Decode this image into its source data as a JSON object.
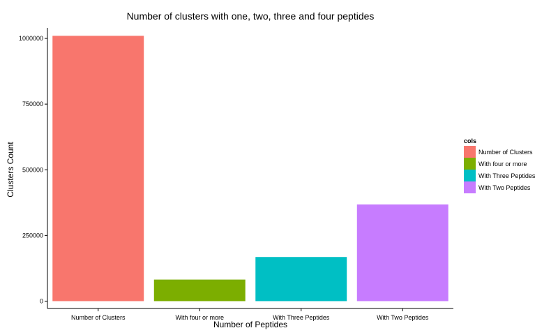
{
  "chart_data": {
    "type": "bar",
    "title": "Number of clusters with one, two, three and four peptides",
    "xlabel": "Number of Peptides",
    "ylabel": "Clusters Count",
    "categories": [
      "Number of Clusters",
      "With four or more",
      "With Three Peptides",
      "With Two Peptides"
    ],
    "values": [
      1010000,
      82000,
      168000,
      368000
    ],
    "colors": [
      "#F8766D",
      "#7CAE00",
      "#00BFC4",
      "#C77CFF"
    ],
    "ylim": [
      -28000,
      1040000
    ],
    "yticks": [
      0,
      250000,
      500000,
      750000,
      1000000
    ],
    "ytick_labels": [
      "0",
      "250000",
      "500000",
      "750000",
      "1000000"
    ],
    "grid": false,
    "legend": {
      "title": "cols",
      "placement": "right",
      "entries": [
        "Number of Clusters",
        "With four or more",
        "With Three Peptides",
        "With Two Peptides"
      ]
    }
  }
}
